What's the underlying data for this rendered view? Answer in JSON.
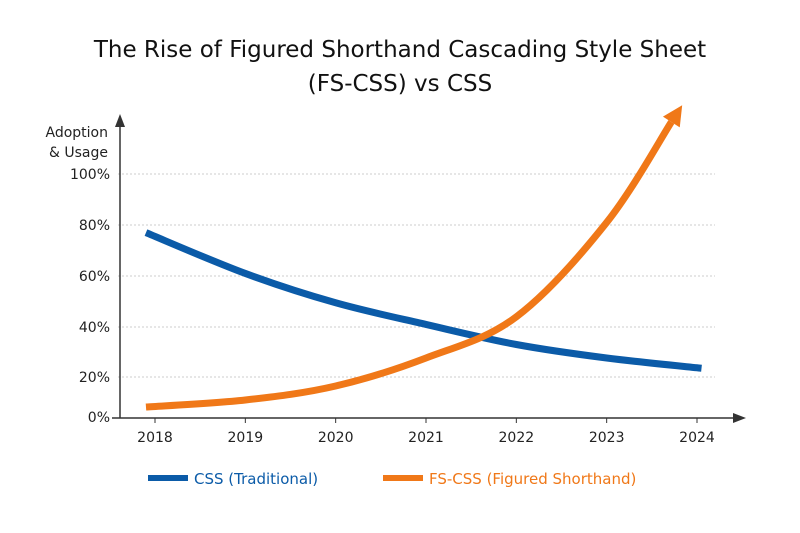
{
  "chart_data": {
    "type": "line",
    "title_lines": [
      "The Rise of Figured Shorthand Cascading Style Sheet",
      "(FS-CSS) vs CSS"
    ],
    "ylabel_lines": [
      "Adoption",
      "& Usage"
    ],
    "xlabel": "",
    "x_ticks": [
      2018,
      2019,
      2020,
      2021,
      2022,
      2023,
      2024
    ],
    "y_ticks": [
      0,
      20,
      40,
      60,
      80,
      100
    ],
    "y_tick_labels": [
      "0%",
      "20%",
      "40%",
      "60%",
      "80%",
      "100%"
    ],
    "grid": "horizontal dotted",
    "legend_placement": "bottom",
    "series": [
      {
        "name": "CSS (Traditional)",
        "color": "#0b5ba8",
        "x": [
          2017.9,
          2019,
          2020,
          2021,
          2022,
          2023,
          2024.05
        ],
        "y": [
          77,
          61,
          49.5,
          41,
          33,
          27.6,
          23.5
        ]
      },
      {
        "name": "FS-CSS (Figured Shorthand)",
        "color": "#f07818",
        "arrow_end": true,
        "x": [
          2017.9,
          2019,
          2020,
          2021,
          2022,
          2023,
          2023.8
        ],
        "y": [
          5,
          8.5,
          15.5,
          27.6,
          44,
          81,
          125
        ]
      }
    ]
  }
}
